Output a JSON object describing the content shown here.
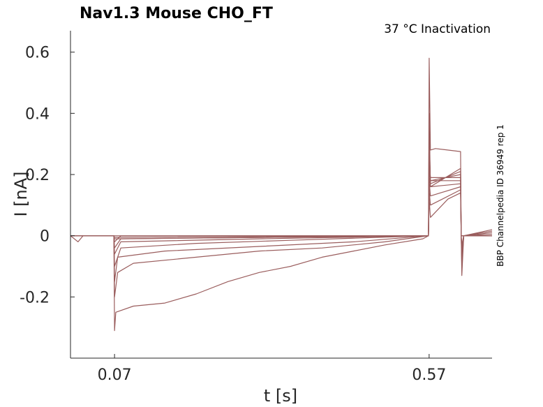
{
  "chart_data": {
    "type": "line",
    "title": "Nav1.3  Mouse  CHO_FT",
    "subtitle": "37 °C  Inactivation",
    "side_label": "BBP Channelpedia ID 36949 rep 1",
    "xlabel": "t [s]",
    "ylabel": "I [nA]",
    "xlim": [
      0.0,
      0.67
    ],
    "ylim": [
      -0.4,
      0.67
    ],
    "x_ticks": [
      {
        "value": 0.07,
        "label": "0.07"
      },
      {
        "value": 0.57,
        "label": "0.57"
      }
    ],
    "y_ticks": [
      {
        "value": 0.6,
        "label": "0.6"
      },
      {
        "value": 0.4,
        "label": "0.4"
      },
      {
        "value": 0.2,
        "label": "0.2"
      },
      {
        "value": 0.0,
        "label": "0"
      },
      {
        "value": -0.2,
        "label": "-0.2"
      }
    ],
    "line_color": "#9a5d5d",
    "grid": false,
    "legend": "none",
    "sweep_count": 10,
    "series": [
      {
        "points": [
          [
            0.0,
            0.0
          ],
          [
            0.012,
            -0.02
          ],
          [
            0.02,
            0.0
          ],
          [
            0.069,
            0.0
          ],
          [
            0.07,
            -0.31
          ],
          [
            0.072,
            -0.25
          ],
          [
            0.1,
            -0.23
          ],
          [
            0.15,
            -0.22
          ],
          [
            0.2,
            -0.19
          ],
          [
            0.25,
            -0.15
          ],
          [
            0.3,
            -0.12
          ],
          [
            0.35,
            -0.1
          ],
          [
            0.4,
            -0.07
          ],
          [
            0.45,
            -0.05
          ],
          [
            0.5,
            -0.03
          ],
          [
            0.56,
            -0.01
          ],
          [
            0.569,
            0.0
          ],
          [
            0.57,
            0.58
          ],
          [
            0.572,
            0.28
          ],
          [
            0.58,
            0.285
          ],
          [
            0.62,
            0.275
          ],
          [
            0.621,
            0.0
          ],
          [
            0.622,
            -0.13
          ],
          [
            0.625,
            0.0
          ],
          [
            0.67,
            0.02
          ]
        ]
      },
      {
        "points": [
          [
            0.0,
            0.0
          ],
          [
            0.069,
            0.0
          ],
          [
            0.07,
            -0.2
          ],
          [
            0.075,
            -0.12
          ],
          [
            0.1,
            -0.09
          ],
          [
            0.2,
            -0.07
          ],
          [
            0.3,
            -0.05
          ],
          [
            0.4,
            -0.04
          ],
          [
            0.5,
            -0.02
          ],
          [
            0.569,
            0.0
          ],
          [
            0.57,
            0.4
          ],
          [
            0.572,
            0.16
          ],
          [
            0.62,
            0.22
          ],
          [
            0.621,
            0.0
          ],
          [
            0.622,
            -0.1
          ],
          [
            0.625,
            0.0
          ],
          [
            0.67,
            0.01
          ]
        ]
      },
      {
        "points": [
          [
            0.0,
            0.0
          ],
          [
            0.069,
            0.0
          ],
          [
            0.07,
            -0.15
          ],
          [
            0.075,
            -0.07
          ],
          [
            0.15,
            -0.05
          ],
          [
            0.3,
            -0.035
          ],
          [
            0.45,
            -0.02
          ],
          [
            0.569,
            0.0
          ],
          [
            0.57,
            0.35
          ],
          [
            0.572,
            0.17
          ],
          [
            0.62,
            0.21
          ],
          [
            0.621,
            0.0
          ],
          [
            0.622,
            -0.08
          ],
          [
            0.625,
            0.0
          ],
          [
            0.67,
            0.015
          ]
        ]
      },
      {
        "points": [
          [
            0.0,
            0.0
          ],
          [
            0.069,
            0.0
          ],
          [
            0.07,
            -0.1
          ],
          [
            0.08,
            -0.04
          ],
          [
            0.2,
            -0.025
          ],
          [
            0.35,
            -0.015
          ],
          [
            0.569,
            0.0
          ],
          [
            0.57,
            0.3
          ],
          [
            0.572,
            0.18
          ],
          [
            0.62,
            0.2
          ],
          [
            0.621,
            0.0
          ],
          [
            0.622,
            -0.06
          ],
          [
            0.625,
            0.0
          ],
          [
            0.67,
            0.005
          ]
        ]
      },
      {
        "points": [
          [
            0.0,
            0.0
          ],
          [
            0.069,
            0.0
          ],
          [
            0.07,
            -0.06
          ],
          [
            0.08,
            -0.02
          ],
          [
            0.3,
            -0.01
          ],
          [
            0.569,
            0.0
          ],
          [
            0.57,
            0.25
          ],
          [
            0.572,
            0.19
          ],
          [
            0.62,
            0.19
          ],
          [
            0.621,
            0.0
          ],
          [
            0.622,
            -0.05
          ],
          [
            0.625,
            0.0
          ],
          [
            0.67,
            0.0
          ]
        ]
      },
      {
        "points": [
          [
            0.0,
            0.0
          ],
          [
            0.069,
            0.0
          ],
          [
            0.07,
            -0.04
          ],
          [
            0.08,
            -0.01
          ],
          [
            0.569,
            0.0
          ],
          [
            0.57,
            0.22
          ],
          [
            0.572,
            0.18
          ],
          [
            0.62,
            0.18
          ],
          [
            0.621,
            0.0
          ],
          [
            0.622,
            -0.04
          ],
          [
            0.625,
            0.0
          ],
          [
            0.67,
            0.0
          ]
        ]
      },
      {
        "points": [
          [
            0.0,
            0.0
          ],
          [
            0.069,
            0.0
          ],
          [
            0.07,
            -0.02
          ],
          [
            0.08,
            0.0
          ],
          [
            0.569,
            0.0
          ],
          [
            0.57,
            0.2
          ],
          [
            0.572,
            0.16
          ],
          [
            0.62,
            0.17
          ],
          [
            0.621,
            0.0
          ],
          [
            0.622,
            -0.03
          ],
          [
            0.625,
            0.0
          ],
          [
            0.67,
            0.0
          ]
        ]
      },
      {
        "points": [
          [
            0.0,
            0.0
          ],
          [
            0.069,
            0.0
          ],
          [
            0.07,
            -0.01
          ],
          [
            0.569,
            0.0
          ],
          [
            0.57,
            0.18
          ],
          [
            0.572,
            0.13
          ],
          [
            0.62,
            0.16
          ],
          [
            0.621,
            0.0
          ],
          [
            0.625,
            0.0
          ],
          [
            0.67,
            0.0
          ]
        ]
      },
      {
        "points": [
          [
            0.0,
            0.0
          ],
          [
            0.069,
            0.0
          ],
          [
            0.07,
            -0.005
          ],
          [
            0.569,
            0.0
          ],
          [
            0.57,
            0.15
          ],
          [
            0.572,
            0.1
          ],
          [
            0.62,
            0.15
          ],
          [
            0.621,
            0.0
          ],
          [
            0.625,
            0.0
          ],
          [
            0.67,
            0.0
          ]
        ]
      },
      {
        "points": [
          [
            0.0,
            0.0
          ],
          [
            0.569,
            0.0
          ],
          [
            0.57,
            0.12
          ],
          [
            0.572,
            0.06
          ],
          [
            0.6,
            0.12
          ],
          [
            0.62,
            0.14
          ],
          [
            0.621,
            0.0
          ],
          [
            0.625,
            0.0
          ],
          [
            0.67,
            0.0
          ]
        ]
      }
    ]
  }
}
